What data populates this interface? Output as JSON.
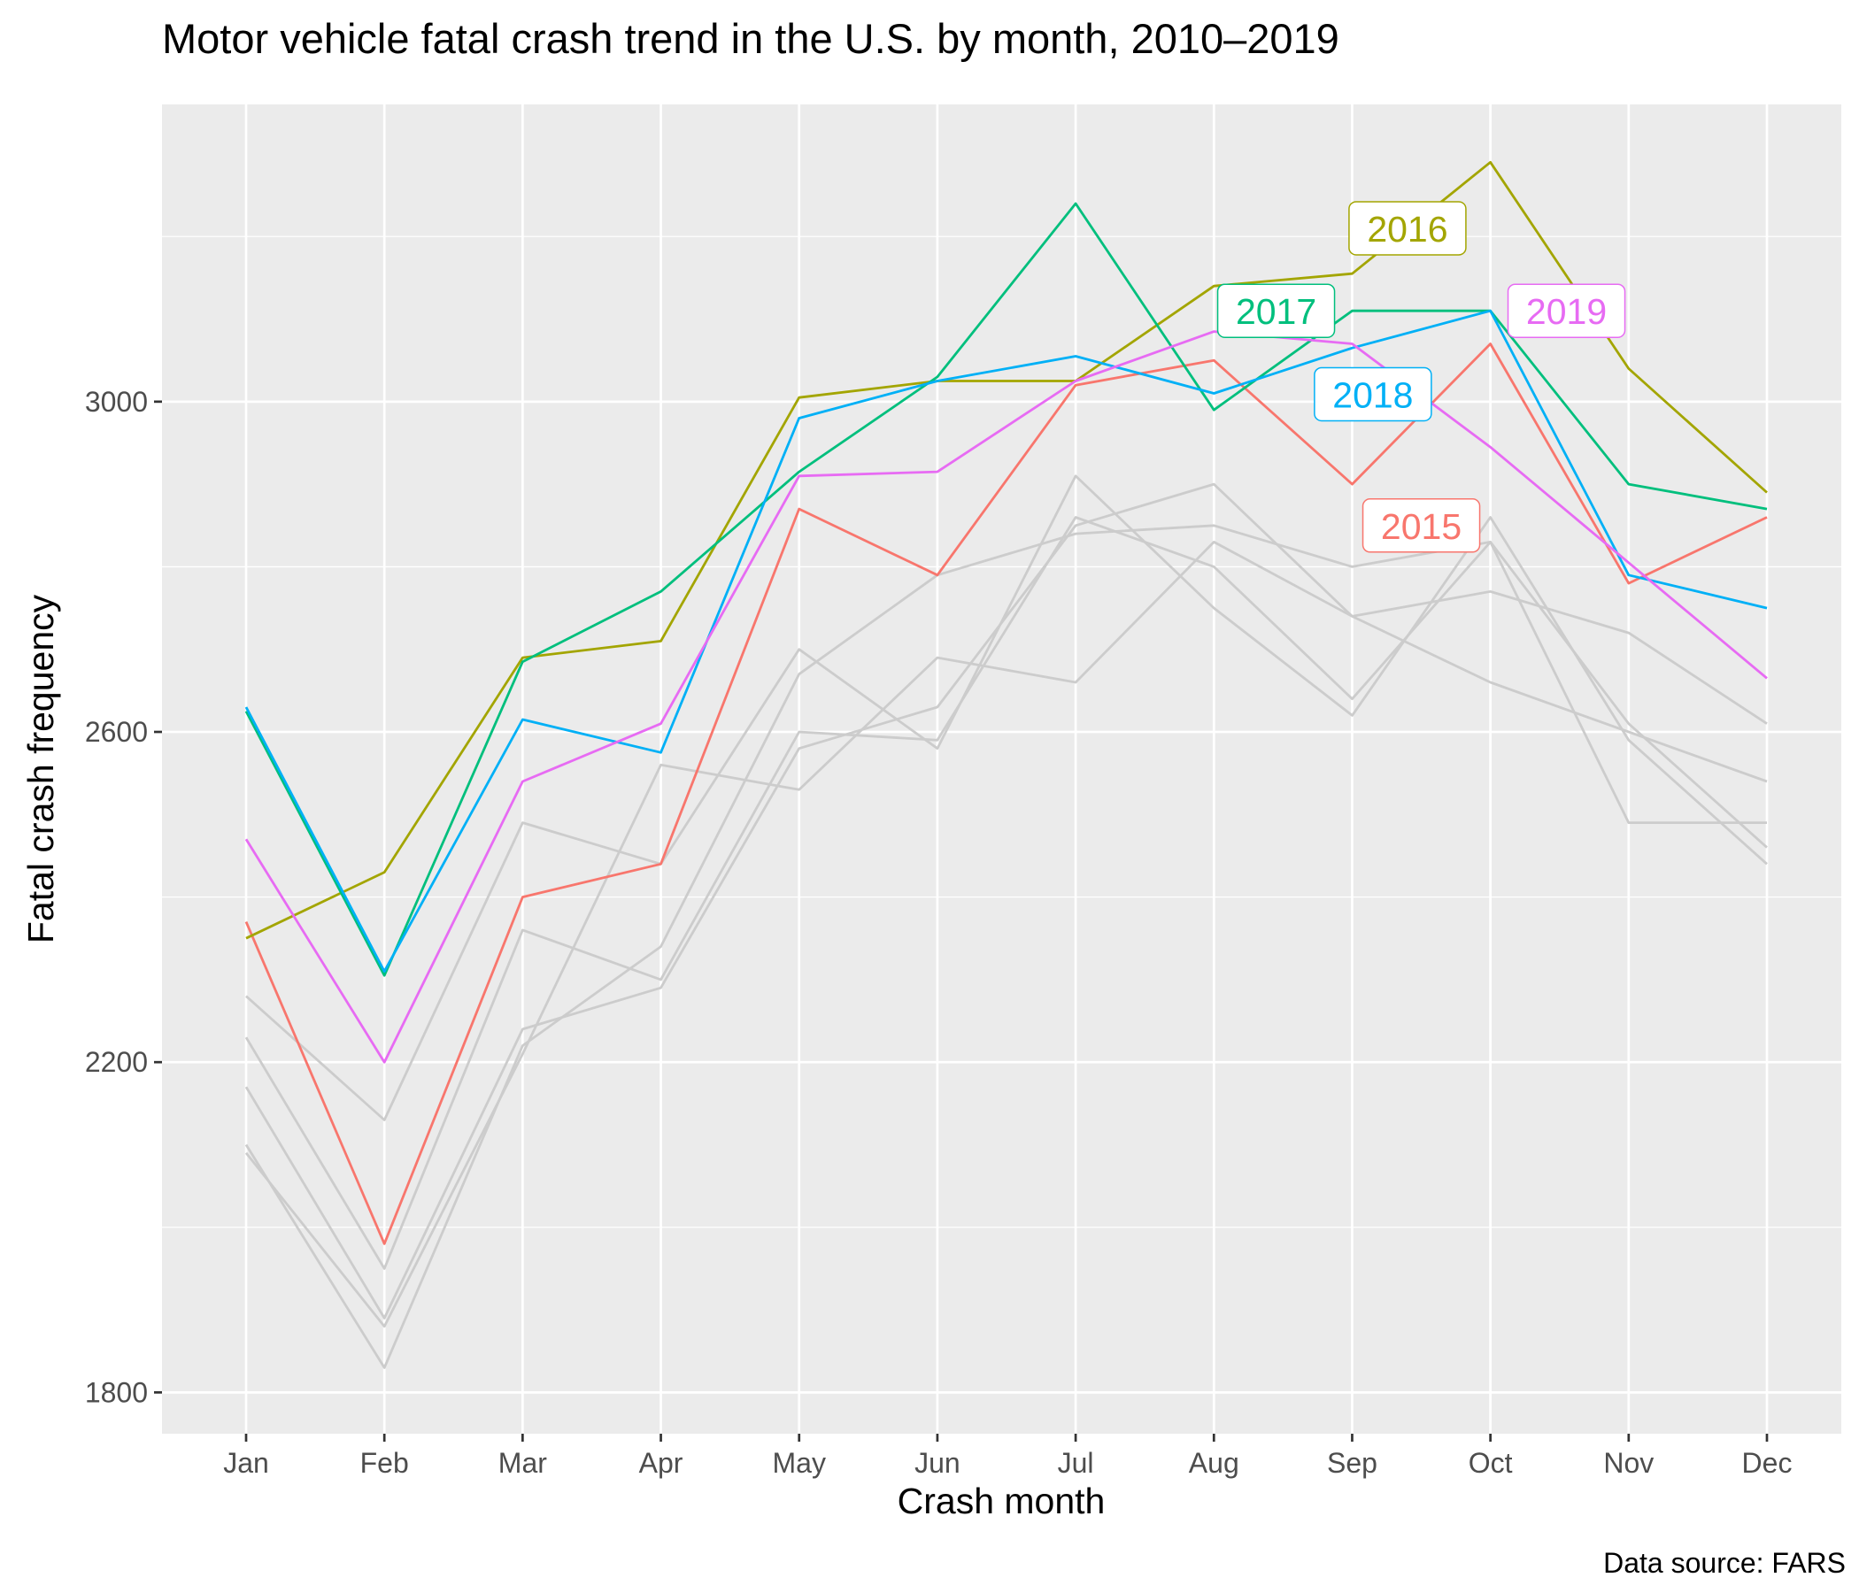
{
  "chart_data": {
    "type": "line",
    "title": "Motor vehicle fatal crash trend in the U.S. by month, 2010–2019",
    "xlabel": "Crash month",
    "ylabel": "Fatal crash frequency",
    "caption": "Data source: FARS",
    "categories": [
      "Jan",
      "Feb",
      "Mar",
      "Apr",
      "May",
      "Jun",
      "Jul",
      "Aug",
      "Sep",
      "Oct",
      "Nov",
      "Dec"
    ],
    "ylim": [
      1750,
      3360
    ],
    "yticks": [
      1800,
      2200,
      2600,
      3000
    ],
    "grid": true,
    "legend": "none",
    "background_series_color": "#cccccc",
    "background_series": [
      {
        "values": [
          2280,
          2130,
          2490,
          2440,
          2700,
          2580,
          2910,
          2750,
          2620,
          2860,
          2590,
          2440
        ]
      },
      {
        "values": [
          2230,
          1950,
          2360,
          2300,
          2600,
          2590,
          2860,
          2800,
          2640,
          2830,
          2610,
          2460
        ]
      },
      {
        "values": [
          2170,
          1890,
          2240,
          2290,
          2580,
          2630,
          2850,
          2900,
          2740,
          2770,
          2720,
          2610
        ]
      },
      {
        "values": [
          2100,
          1830,
          2220,
          2340,
          2670,
          2790,
          2840,
          2850,
          2800,
          2830,
          2490,
          2490
        ]
      },
      {
        "values": [
          2090,
          1880,
          2210,
          2560,
          2530,
          2690,
          2660,
          2830,
          2740,
          2660,
          2600,
          2540
        ]
      }
    ],
    "series": [
      {
        "name": "2015",
        "color": "#f8766d",
        "values": [
          2370,
          1980,
          2400,
          2440,
          2870,
          2790,
          3020,
          3050,
          2900,
          3070,
          2780,
          2860
        ]
      },
      {
        "name": "2016",
        "color": "#a3a500",
        "values": [
          2350,
          2430,
          2690,
          2710,
          3005,
          3025,
          3025,
          3140,
          3155,
          3290,
          3040,
          2890
        ]
      },
      {
        "name": "2017",
        "color": "#00bf7d",
        "values": [
          2625,
          2305,
          2685,
          2770,
          2915,
          3030,
          3240,
          2990,
          3110,
          3110,
          2900,
          2870
        ]
      },
      {
        "name": "2018",
        "color": "#00b0f6",
        "values": [
          2630,
          2310,
          2615,
          2575,
          2980,
          3025,
          3055,
          3010,
          3065,
          3110,
          2790,
          2750
        ]
      },
      {
        "name": "2019",
        "color": "#e76bf3",
        "values": [
          2470,
          2200,
          2540,
          2610,
          2910,
          2915,
          3025,
          3085,
          3070,
          2945,
          2805,
          2665
        ]
      }
    ],
    "annotations": [
      {
        "text": "2016",
        "series": "2016",
        "color": "#a3a500",
        "x": 8.4,
        "y": 3210
      },
      {
        "text": "2017",
        "series": "2017",
        "color": "#00bf7d",
        "x": 7.45,
        "y": 3110
      },
      {
        "text": "2019",
        "series": "2019",
        "color": "#e76bf3",
        "x": 9.55,
        "y": 3110
      },
      {
        "text": "2018",
        "series": "2018",
        "color": "#00b0f6",
        "x": 8.15,
        "y": 3009
      },
      {
        "text": "2015",
        "series": "2015",
        "color": "#f8766d",
        "x": 8.5,
        "y": 2850
      }
    ]
  }
}
